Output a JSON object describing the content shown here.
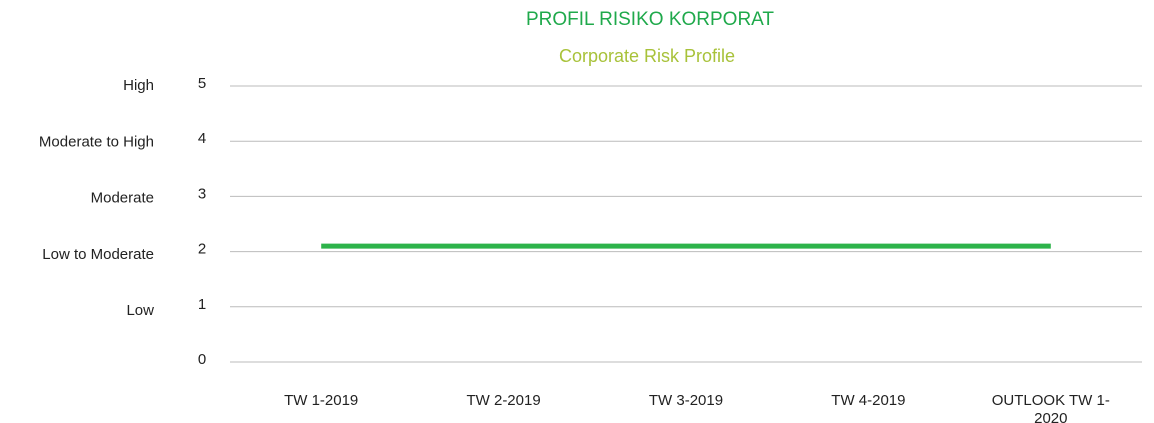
{
  "chart_data": {
    "type": "line",
    "title": "PROFIL RISIKO KORPORAT",
    "subtitle": "Corporate Risk Profile",
    "risk_levels": [
      "High",
      "Moderate to High",
      "Moderate",
      "Low to Moderate",
      "Low"
    ],
    "categories": [
      "TW 1-2019",
      "TW 2-2019",
      "TW 3-2019",
      "TW 4-2019",
      "OUTLOOK TW 1-2020"
    ],
    "series": [
      {
        "name": "Corporate Risk Profile",
        "color": "#2db34a",
        "values": [
          2.1,
          2.1,
          2.1,
          2.1,
          2.1
        ]
      }
    ],
    "ylim": [
      0,
      5
    ],
    "yticks": [
      0,
      1,
      2,
      3,
      4,
      5
    ],
    "grid": true,
    "title_color": "#1fa94b",
    "subtitle_color": "#a8c23a"
  }
}
